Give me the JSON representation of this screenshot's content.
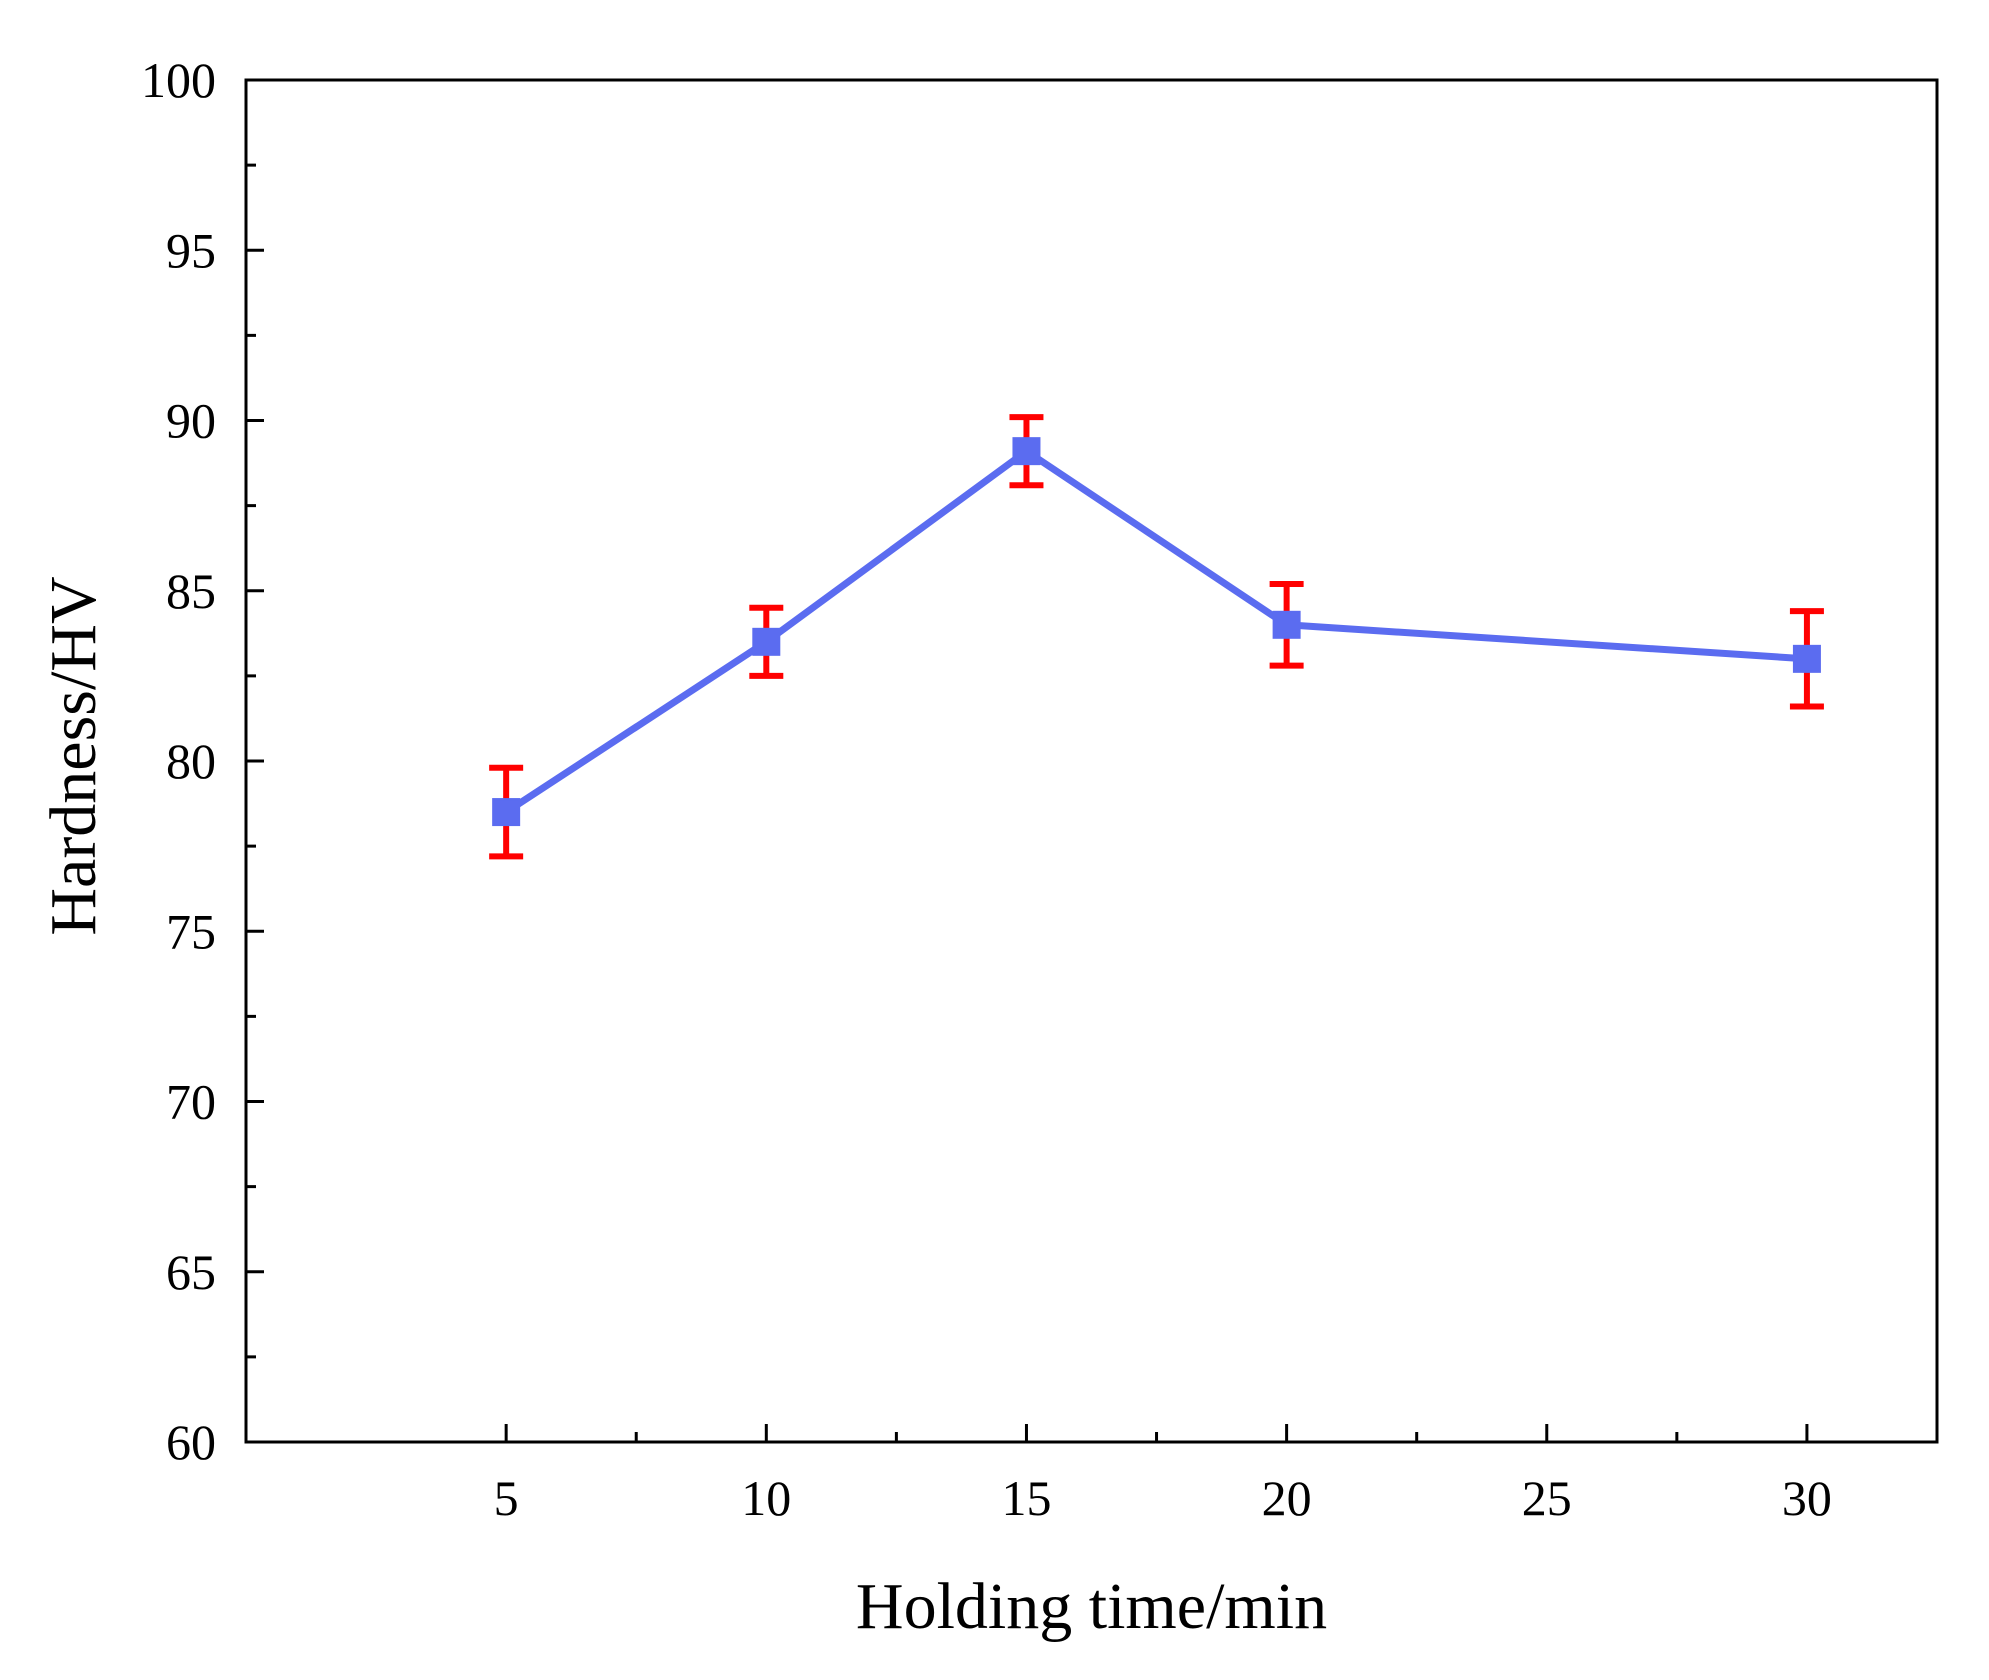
{
  "chart_data": {
    "type": "line",
    "xlabel": "Holding time/min",
    "ylabel": "Hardness/HV",
    "xlim": [
      0,
      32.5
    ],
    "ylim": [
      60,
      100
    ],
    "x_ticks": [
      {
        "pos": 5,
        "label": "5"
      },
      {
        "pos": 10,
        "label": "10"
      },
      {
        "pos": 15,
        "label": "15"
      },
      {
        "pos": 20,
        "label": "20"
      },
      {
        "pos": 25,
        "label": "25"
      },
      {
        "pos": 30,
        "label": "30"
      }
    ],
    "y_ticks": [
      60,
      65,
      70,
      75,
      80,
      85,
      90,
      95,
      100
    ],
    "grid": false,
    "series": [
      {
        "line_color": "#5b6cf0",
        "marker_color": "#5b6cf0",
        "marker": "square",
        "error_color": "#ff0000",
        "points": [
          {
            "x": 5,
            "y": 78.5,
            "err_low": 77.2,
            "err_high": 79.8
          },
          {
            "x": 10,
            "y": 83.5,
            "err_low": 82.5,
            "err_high": 84.5
          },
          {
            "x": 15,
            "y": 89.1,
            "err_low": 88.1,
            "err_high": 90.1
          },
          {
            "x": 20,
            "y": 84.0,
            "err_low": 82.8,
            "err_high": 85.2
          },
          {
            "x": 30,
            "y": 83.0,
            "err_low": 81.6,
            "err_high": 84.4
          }
        ]
      }
    ]
  }
}
